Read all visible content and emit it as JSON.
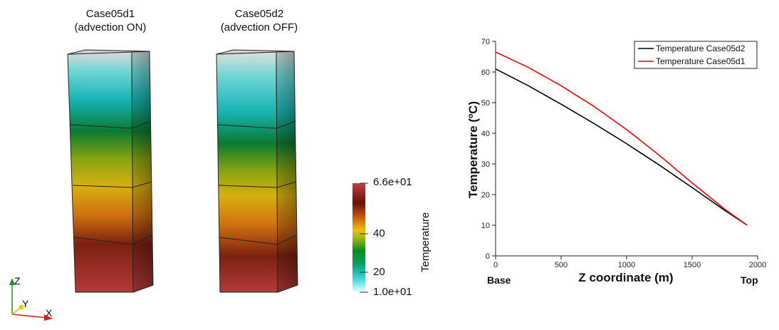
{
  "views": {
    "left_title": [
      "Case05d1",
      "(advection ON)"
    ],
    "right_title": [
      "Case05d2",
      "(advection OFF)"
    ]
  },
  "colorbar": {
    "title": "Temperature",
    "max_label": "6.6e+01",
    "min_label": "1.0e+01",
    "tick_40": "40",
    "tick_20": "20",
    "range": [
      10,
      66
    ]
  },
  "axes_triad": {
    "x": "X",
    "y": "Y",
    "z": "Z"
  },
  "chart_data": {
    "type": "line",
    "xlabel": "Z coordinate (m)",
    "ylabel": "Temperature (ºC)",
    "xlim": [
      0,
      2000
    ],
    "ylim": [
      0,
      70
    ],
    "xticks": [
      0,
      500,
      1000,
      1500,
      2000
    ],
    "yticks": [
      0,
      10,
      20,
      30,
      40,
      50,
      60,
      70
    ],
    "xlabel_left": "Base",
    "xlabel_right": "Top",
    "legend_position": "top-right",
    "grid": false,
    "series": [
      {
        "name": "Temperature Case05d2",
        "color": "#000000",
        "x": [
          0,
          250,
          500,
          750,
          1000,
          1250,
          1500,
          1750,
          1920
        ],
        "y": [
          61,
          55.5,
          49.5,
          43.2,
          36.6,
          29.6,
          22.3,
          14.8,
          10
        ]
      },
      {
        "name": "Temperature Case05d1",
        "color": "#ff0000",
        "x": [
          0,
          250,
          500,
          750,
          1000,
          1250,
          1500,
          1750,
          1920
        ],
        "y": [
          66.5,
          61.5,
          55.5,
          48.8,
          41.2,
          32.8,
          23.8,
          15.2,
          10
        ]
      }
    ]
  }
}
